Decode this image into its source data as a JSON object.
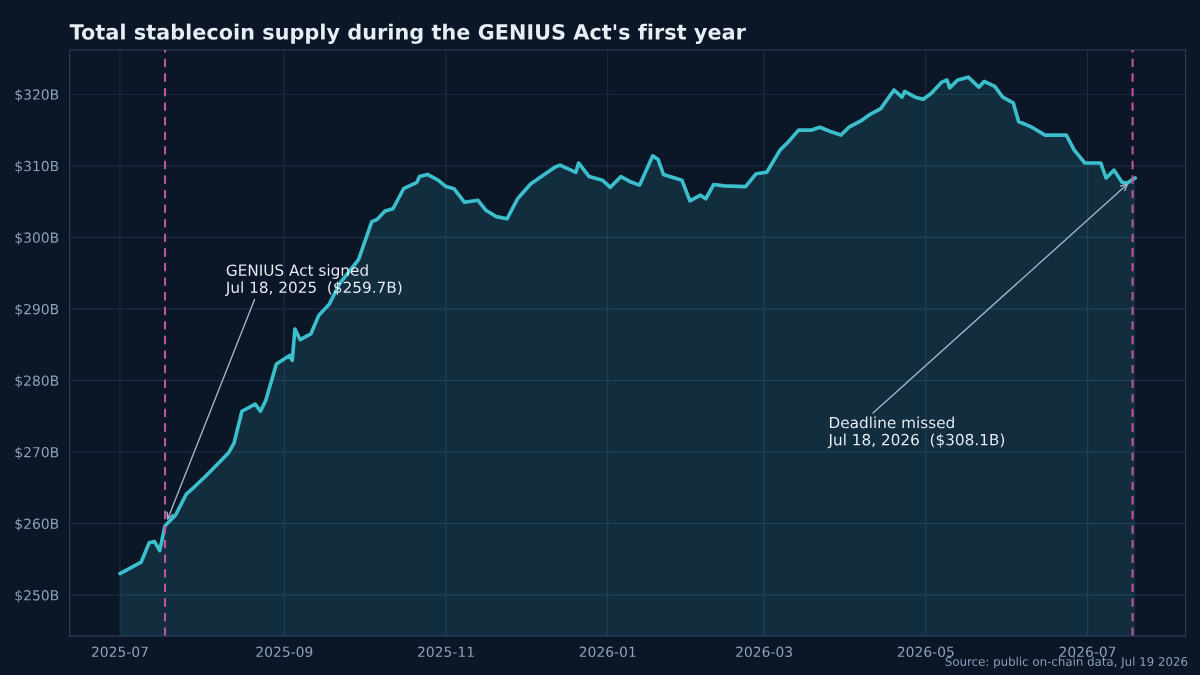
{
  "chart_data": {
    "type": "area",
    "title": "Total stablecoin supply during the GENIUS Act's first year",
    "x": [
      "2025-07-01",
      "2025-07-09",
      "2025-07-12",
      "2025-07-14",
      "2025-07-16",
      "2025-07-18",
      "2025-07-22",
      "2025-07-26",
      "2025-07-29",
      "2025-08-02",
      "2025-08-06",
      "2025-08-11",
      "2025-08-13",
      "2025-08-16",
      "2025-08-21",
      "2025-08-23",
      "2025-08-25",
      "2025-08-29",
      "2025-09-03",
      "2025-09-04",
      "2025-09-05",
      "2025-09-07",
      "2025-09-11",
      "2025-09-14",
      "2025-09-18",
      "2025-09-22",
      "2025-09-29",
      "2025-10-04",
      "2025-10-06",
      "2025-10-09",
      "2025-10-12",
      "2025-10-16",
      "2025-10-21",
      "2025-10-22",
      "2025-10-25",
      "2025-10-29",
      "2025-11-01",
      "2025-11-04",
      "2025-11-08",
      "2025-11-13",
      "2025-11-16",
      "2025-11-20",
      "2025-11-24",
      "2025-11-28",
      "2025-12-03",
      "2025-12-07",
      "2025-12-12",
      "2025-12-14",
      "2025-12-20",
      "2025-12-21",
      "2025-12-25",
      "2025-12-30",
      "2026-01-02",
      "2026-01-06",
      "2026-01-10",
      "2026-01-13",
      "2026-01-18",
      "2026-01-20",
      "2026-01-22",
      "2026-01-29",
      "2026-02-01",
      "2026-02-05",
      "2026-02-07",
      "2026-02-10",
      "2026-02-14",
      "2026-02-22",
      "2026-02-26",
      "2026-03-02",
      "2026-03-07",
      "2026-03-10",
      "2026-03-14",
      "2026-03-19",
      "2026-03-22",
      "2026-03-26",
      "2026-03-30",
      "2026-04-02",
      "2026-04-07",
      "2026-04-10",
      "2026-04-14",
      "2026-04-19",
      "2026-04-22",
      "2026-04-23",
      "2026-04-27",
      "2026-04-30",
      "2026-05-03",
      "2026-05-07",
      "2026-05-09",
      "2026-05-10",
      "2026-05-13",
      "2026-05-17",
      "2026-05-21",
      "2026-05-23",
      "2026-05-27",
      "2026-05-30",
      "2026-06-03",
      "2026-06-05",
      "2026-06-10",
      "2026-06-15",
      "2026-06-23",
      "2026-06-26",
      "2026-06-30",
      "2026-07-06",
      "2026-07-08",
      "2026-07-11",
      "2026-07-14",
      "2026-07-16",
      "2026-07-18",
      "2026-07-19"
    ],
    "series": [
      {
        "color": "#3bbfcc",
        "values": [
          253.0,
          254.6,
          257.3,
          257.5,
          256.2,
          259.7,
          261.2,
          264.1,
          265.1,
          266.5,
          268.0,
          269.9,
          271.2,
          275.7,
          276.7,
          275.7,
          277.2,
          282.3,
          283.5,
          282.8,
          287.2,
          285.7,
          286.5,
          289.1,
          290.7,
          293.6,
          296.9,
          302.2,
          302.5,
          303.7,
          304.0,
          306.8,
          307.7,
          308.5,
          308.8,
          308.0,
          307.1,
          306.8,
          304.9,
          305.2,
          303.8,
          302.9,
          302.6,
          305.4,
          307.5,
          308.5,
          309.8,
          310.1,
          309.1,
          310.4,
          308.5,
          308.0,
          307.0,
          308.5,
          307.7,
          307.3,
          311.4,
          310.9,
          308.8,
          308.0,
          305.1,
          305.9,
          305.4,
          307.4,
          307.2,
          307.1,
          308.9,
          309.1,
          312.2,
          313.3,
          315.0,
          315.0,
          315.4,
          314.8,
          314.3,
          315.4,
          316.4,
          317.2,
          318.0,
          320.6,
          319.6,
          320.4,
          319.6,
          319.3,
          320.1,
          321.7,
          322.0,
          320.9,
          322.0,
          322.4,
          321.0,
          321.8,
          321.1,
          319.6,
          318.8,
          316.2,
          315.4,
          314.3,
          314.3,
          312.2,
          310.4,
          310.4,
          308.3,
          309.4,
          307.7,
          307.6,
          308.1,
          308.3
        ]
      }
    ],
    "xlim": [
      "2025-06-12",
      "2026-08-07"
    ],
    "xticks": [
      {
        "value": "2025-07",
        "label": "2025-07"
      },
      {
        "value": "2025-09",
        "label": "2025-09"
      },
      {
        "value": "2025-11",
        "label": "2025-11"
      },
      {
        "value": "2026-01",
        "label": "2026-01"
      },
      {
        "value": "2026-03",
        "label": "2026-03"
      },
      {
        "value": "2026-05",
        "label": "2026-05"
      },
      {
        "value": "2026-07",
        "label": "2026-07"
      }
    ],
    "ylim": [
      244.3,
      326.2
    ],
    "yticks": [
      {
        "value": 250,
        "label": "$250B"
      },
      {
        "value": 260,
        "label": "$260B"
      },
      {
        "value": 270,
        "label": "$270B"
      },
      {
        "value": 280,
        "label": "$280B"
      },
      {
        "value": 290,
        "label": "$290B"
      },
      {
        "value": 300,
        "label": "$300B"
      },
      {
        "value": 310,
        "label": "$310B"
      },
      {
        "value": 320,
        "label": "$320B"
      }
    ],
    "ref_lines": [
      {
        "axis": "x",
        "value": "2025-07-18",
        "color": "#c0559e",
        "line_style": "dashed"
      },
      {
        "axis": "x",
        "value": "2026-07-18",
        "color": "#c0559e",
        "line_style": "dashed"
      }
    ],
    "annotations": [
      {
        "text": "GENIUS Act signed\nJul 18, 2025  ($259.7B)",
        "x": "2025-07-18",
        "y": 259.7
      },
      {
        "text": "Deadline missed\nJul 18, 2026  ($308.1B)",
        "x": "2026-07-18",
        "y": 308.1
      },
      "Source: public on-chain data, Jul 19 2026"
    ],
    "grid": true,
    "legend": false
  }
}
